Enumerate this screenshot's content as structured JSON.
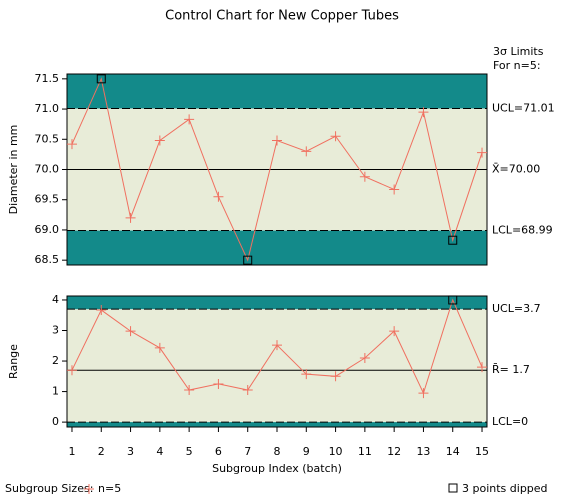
{
  "title": "Control Chart for New Copper Tubes",
  "limits_header": [
    "3σ Limits",
    "For n=5:"
  ],
  "xlabel": "Subgroup Index (batch)",
  "footer": {
    "sizes_label": "Subgroup Sizes:",
    "note": "3 points dipped"
  },
  "chart_data": [
    {
      "type": "line",
      "ylabel": "Diameter in mm",
      "x": [
        1,
        2,
        3,
        4,
        5,
        6,
        7,
        8,
        9,
        10,
        11,
        12,
        13,
        14,
        15
      ],
      "xlim": [
        0.83,
        15.17
      ],
      "ylim": [
        68.42,
        71.58
      ],
      "yticks": [
        {
          "value": 68.5,
          "label": "68.5"
        },
        {
          "value": 69,
          "label": "69.0"
        },
        {
          "value": 69.5,
          "label": "69.5"
        },
        {
          "value": 70,
          "label": "70.0"
        },
        {
          "value": 70.5,
          "label": "70.5"
        },
        {
          "value": 71,
          "label": "71.0"
        },
        {
          "value": 71.5,
          "label": "71.5"
        }
      ],
      "series": [
        {
          "name": "n=5",
          "color": "#f07060",
          "values": [
            70.42,
            71.5,
            69.2,
            70.48,
            70.83,
            69.55,
            68.5,
            70.48,
            70.3,
            70.55,
            69.88,
            69.67,
            70.95,
            68.83,
            70.28
          ]
        }
      ],
      "ucl": {
        "value": 71.01,
        "label": "UCL=71.01"
      },
      "center": {
        "value": 70.0,
        "label": "X̄=70.00"
      },
      "lcl": {
        "value": 68.99,
        "label": "LCL=68.99"
      },
      "zone_color": "#138a8a",
      "inner_color": "#e8ecd8"
    },
    {
      "type": "line",
      "ylabel": "Range",
      "x": [
        1,
        2,
        3,
        4,
        5,
        6,
        7,
        8,
        9,
        10,
        11,
        12,
        13,
        14,
        15
      ],
      "xlim": [
        0.83,
        15.17
      ],
      "xticks": [
        1,
        2,
        3,
        4,
        5,
        6,
        7,
        8,
        9,
        10,
        11,
        12,
        13,
        14,
        15
      ],
      "ylim": [
        -0.16,
        4.13
      ],
      "yticks": [
        0,
        1,
        2,
        3,
        4
      ],
      "series": [
        {
          "color": "#f07060",
          "values": [
            1.7,
            3.67,
            2.98,
            2.43,
            1.05,
            1.25,
            1.05,
            2.52,
            1.57,
            1.5,
            2.1,
            2.98,
            0.95,
            4.0,
            1.8
          ]
        }
      ],
      "ucl": {
        "value": 3.7,
        "label": "UCL=3.7"
      },
      "center": {
        "value": 1.7,
        "label": "R̄= 1.7"
      },
      "lcl": {
        "value": 0,
        "label": "LCL=0"
      },
      "zone_color": "#138a8a",
      "inner_color": "#e8ecd8"
    }
  ]
}
